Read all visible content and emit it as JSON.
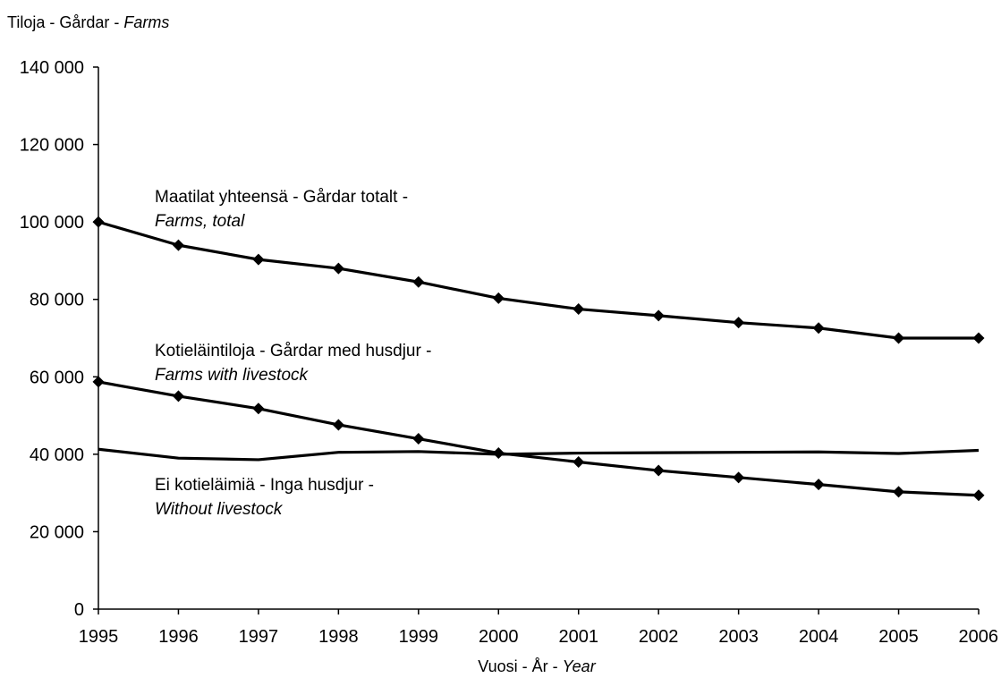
{
  "chart_data": {
    "type": "line",
    "ylabel_parts": [
      "Tiloja - Gårdar - ",
      "Farms"
    ],
    "xlabel_parts": [
      "Vuosi - År - ",
      "Year"
    ],
    "x": [
      1995,
      1996,
      1997,
      1998,
      1999,
      2000,
      2001,
      2002,
      2003,
      2004,
      2005,
      2006
    ],
    "ylim": [
      0,
      140000
    ],
    "yticks": [
      0,
      20000,
      40000,
      60000,
      80000,
      100000,
      120000,
      140000
    ],
    "ytick_labels": [
      "0",
      "20 000",
      "40 000",
      "60 000",
      "80 000",
      "100 000",
      "120 000",
      "140 000"
    ],
    "grid": false,
    "series": [
      {
        "label_line1": "Maatilat yhteensä - Gårdar totalt -",
        "label_line2": "Farms, total",
        "marker": "diamond",
        "values": [
          100000,
          94000,
          90300,
          88000,
          84500,
          80300,
          77500,
          75800,
          74000,
          72600,
          70000,
          70000
        ]
      },
      {
        "label_line1": "Kotieläintiloja - Gårdar med husdjur -",
        "label_line2": "Farms with livestock",
        "marker": "diamond",
        "values": [
          58700,
          55000,
          51800,
          47600,
          44000,
          40300,
          38000,
          35800,
          34000,
          32200,
          30300,
          29400
        ]
      },
      {
        "label_line1": "Ei kotieläimiä - Inga husdjur -",
        "label_line2": "Without livestock",
        "marker": "none",
        "values": [
          41300,
          39000,
          38600,
          40500,
          40700,
          40000,
          40300,
          40400,
          40500,
          40600,
          40200,
          41000
        ]
      }
    ]
  }
}
